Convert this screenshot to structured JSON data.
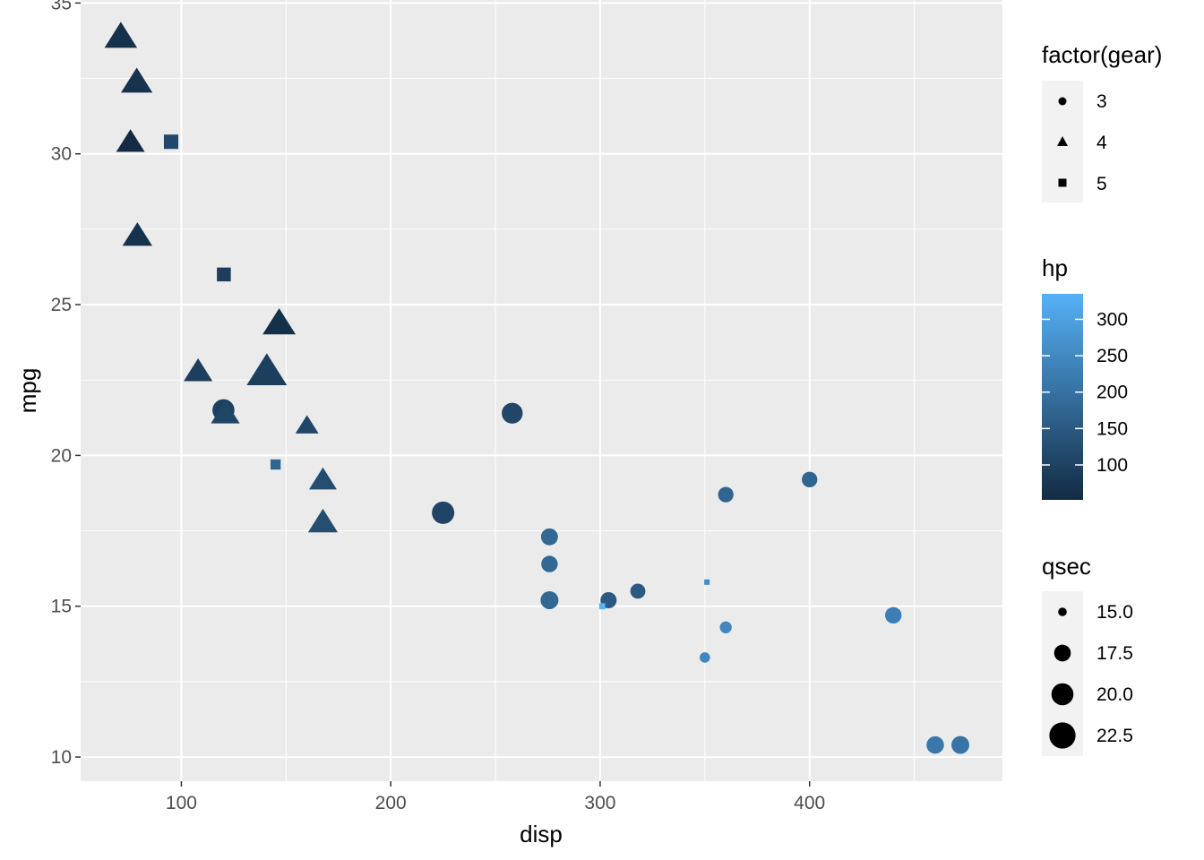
{
  "chart_data": {
    "type": "scatter",
    "xlabel": "disp",
    "ylabel": "mpg",
    "xlim": [
      51.9,
      492.1
    ],
    "ylim": [
      9.2,
      35.1
    ],
    "x_ticks": [
      100,
      200,
      300,
      400
    ],
    "y_ticks": [
      10,
      15,
      20,
      25,
      30,
      35
    ],
    "grid": true,
    "legend_position": "right",
    "encodings": {
      "shape": "factor(gear)",
      "color": "hp",
      "size": "qsec"
    },
    "points": [
      {
        "x": 160,
        "y": 21.0,
        "gear": 4,
        "hp": 110,
        "qsec": 16.46
      },
      {
        "x": 160,
        "y": 21.0,
        "gear": 4,
        "hp": 110,
        "qsec": 17.02
      },
      {
        "x": 108,
        "y": 22.8,
        "gear": 4,
        "hp": 93,
        "qsec": 18.61
      },
      {
        "x": 258,
        "y": 21.4,
        "gear": 3,
        "hp": 110,
        "qsec": 19.44
      },
      {
        "x": 360,
        "y": 18.7,
        "gear": 3,
        "hp": 175,
        "qsec": 17.02
      },
      {
        "x": 225,
        "y": 18.1,
        "gear": 3,
        "hp": 105,
        "qsec": 20.22
      },
      {
        "x": 360,
        "y": 14.3,
        "gear": 3,
        "hp": 245,
        "qsec": 15.84
      },
      {
        "x": 146.7,
        "y": 24.4,
        "gear": 4,
        "hp": 62,
        "qsec": 20.0
      },
      {
        "x": 140.8,
        "y": 22.8,
        "gear": 4,
        "hp": 95,
        "qsec": 22.9
      },
      {
        "x": 167.6,
        "y": 19.2,
        "gear": 4,
        "hp": 123,
        "qsec": 18.3
      },
      {
        "x": 167.6,
        "y": 17.8,
        "gear": 4,
        "hp": 123,
        "qsec": 18.9
      },
      {
        "x": 275.8,
        "y": 16.4,
        "gear": 3,
        "hp": 180,
        "qsec": 17.4
      },
      {
        "x": 275.8,
        "y": 17.3,
        "gear": 3,
        "hp": 180,
        "qsec": 17.6
      },
      {
        "x": 275.8,
        "y": 15.2,
        "gear": 3,
        "hp": 180,
        "qsec": 18.0
      },
      {
        "x": 472,
        "y": 10.4,
        "gear": 3,
        "hp": 205,
        "qsec": 17.98
      },
      {
        "x": 460,
        "y": 10.4,
        "gear": 3,
        "hp": 215,
        "qsec": 17.82
      },
      {
        "x": 440,
        "y": 14.7,
        "gear": 3,
        "hp": 230,
        "qsec": 17.42
      },
      {
        "x": 78.7,
        "y": 32.4,
        "gear": 4,
        "hp": 66,
        "qsec": 19.47
      },
      {
        "x": 75.7,
        "y": 30.4,
        "gear": 4,
        "hp": 52,
        "qsec": 18.52
      },
      {
        "x": 71.1,
        "y": 33.9,
        "gear": 4,
        "hp": 65,
        "qsec": 19.9
      },
      {
        "x": 120.1,
        "y": 21.5,
        "gear": 3,
        "hp": 97,
        "qsec": 20.01
      },
      {
        "x": 318,
        "y": 15.5,
        "gear": 3,
        "hp": 150,
        "qsec": 16.87
      },
      {
        "x": 304,
        "y": 15.2,
        "gear": 3,
        "hp": 150,
        "qsec": 17.3
      },
      {
        "x": 350,
        "y": 13.3,
        "gear": 3,
        "hp": 245,
        "qsec": 15.41
      },
      {
        "x": 400,
        "y": 19.2,
        "gear": 3,
        "hp": 175,
        "qsec": 17.05
      },
      {
        "x": 79,
        "y": 27.3,
        "gear": 4,
        "hp": 66,
        "qsec": 18.9
      },
      {
        "x": 120.3,
        "y": 26.0,
        "gear": 5,
        "hp": 91,
        "qsec": 16.7
      },
      {
        "x": 95.1,
        "y": 30.4,
        "gear": 5,
        "hp": 113,
        "qsec": 16.9
      },
      {
        "x": 351,
        "y": 15.8,
        "gear": 5,
        "hp": 264,
        "qsec": 14.5
      },
      {
        "x": 145,
        "y": 19.7,
        "gear": 5,
        "hp": 175,
        "qsec": 15.5
      },
      {
        "x": 301,
        "y": 15.0,
        "gear": 5,
        "hp": 335,
        "qsec": 14.6
      },
      {
        "x": 121,
        "y": 21.4,
        "gear": 4,
        "hp": 109,
        "qsec": 18.6
      }
    ],
    "legends": {
      "shape": {
        "title": "factor(gear)",
        "items": [
          {
            "label": "3",
            "shape": "circle"
          },
          {
            "label": "4",
            "shape": "triangle"
          },
          {
            "label": "5",
            "shape": "square"
          }
        ]
      },
      "color": {
        "title": "hp",
        "range": [
          52,
          335
        ],
        "ticks": [
          100,
          150,
          200,
          250,
          300
        ],
        "tick_labels": [
          "100",
          "150",
          "200",
          "250",
          "300"
        ],
        "low_color": "#132B43",
        "high_color": "#56B1F7"
      },
      "size": {
        "title": "qsec",
        "range": [
          14.5,
          22.9
        ],
        "breaks": [
          15.0,
          17.5,
          20.0,
          22.5
        ],
        "labels": [
          "15.0",
          "17.5",
          "20.0",
          "22.5"
        ]
      }
    },
    "colors": {
      "panel_background": "#EBEBEB",
      "grid_major": "#FFFFFF",
      "legend_key_background": "#F2F2F2",
      "tick_text": "#4D4D4D"
    }
  }
}
